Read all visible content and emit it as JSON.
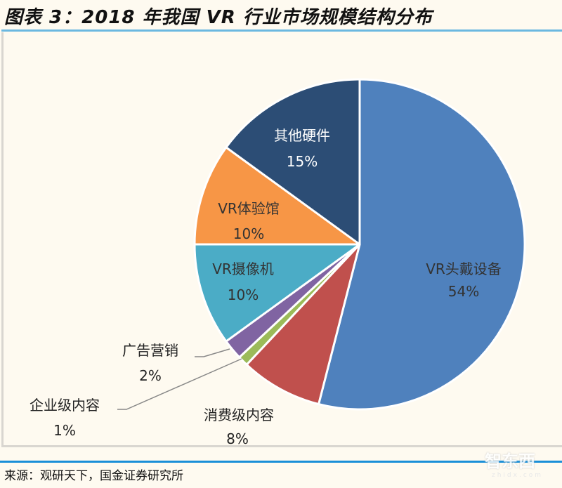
{
  "title": "图表 3：2018 年我国 VR 行业市场规模结构分布",
  "source": "来源：观研天下，国金证券研究所",
  "watermark": {
    "main": "智东西",
    "sub": "zhidx.com"
  },
  "chart_data": {
    "type": "pie",
    "title": "2018 年我国 VR 行业市场规模结构分布",
    "start_angle_deg": 0,
    "direction": "clockwise",
    "slices": [
      {
        "label": "VR头戴设备",
        "value": 54,
        "display": "54%",
        "color": "#4f81bd"
      },
      {
        "label": "消费级内容",
        "value": 8,
        "display": "8%",
        "color": "#c0504d"
      },
      {
        "label": "企业级内容",
        "value": 1,
        "display": "1%",
        "color": "#9bbb59"
      },
      {
        "label": "广告营销",
        "value": 2,
        "display": "2%",
        "color": "#8064a2"
      },
      {
        "label": "VR摄像机",
        "value": 10,
        "display": "10%",
        "color": "#4bacc6"
      },
      {
        "label": "VR体验馆",
        "value": 10,
        "display": "10%",
        "color": "#f79646"
      },
      {
        "label": "其他硬件",
        "value": 15,
        "display": "15%",
        "color": "#2c4d75"
      }
    ]
  }
}
